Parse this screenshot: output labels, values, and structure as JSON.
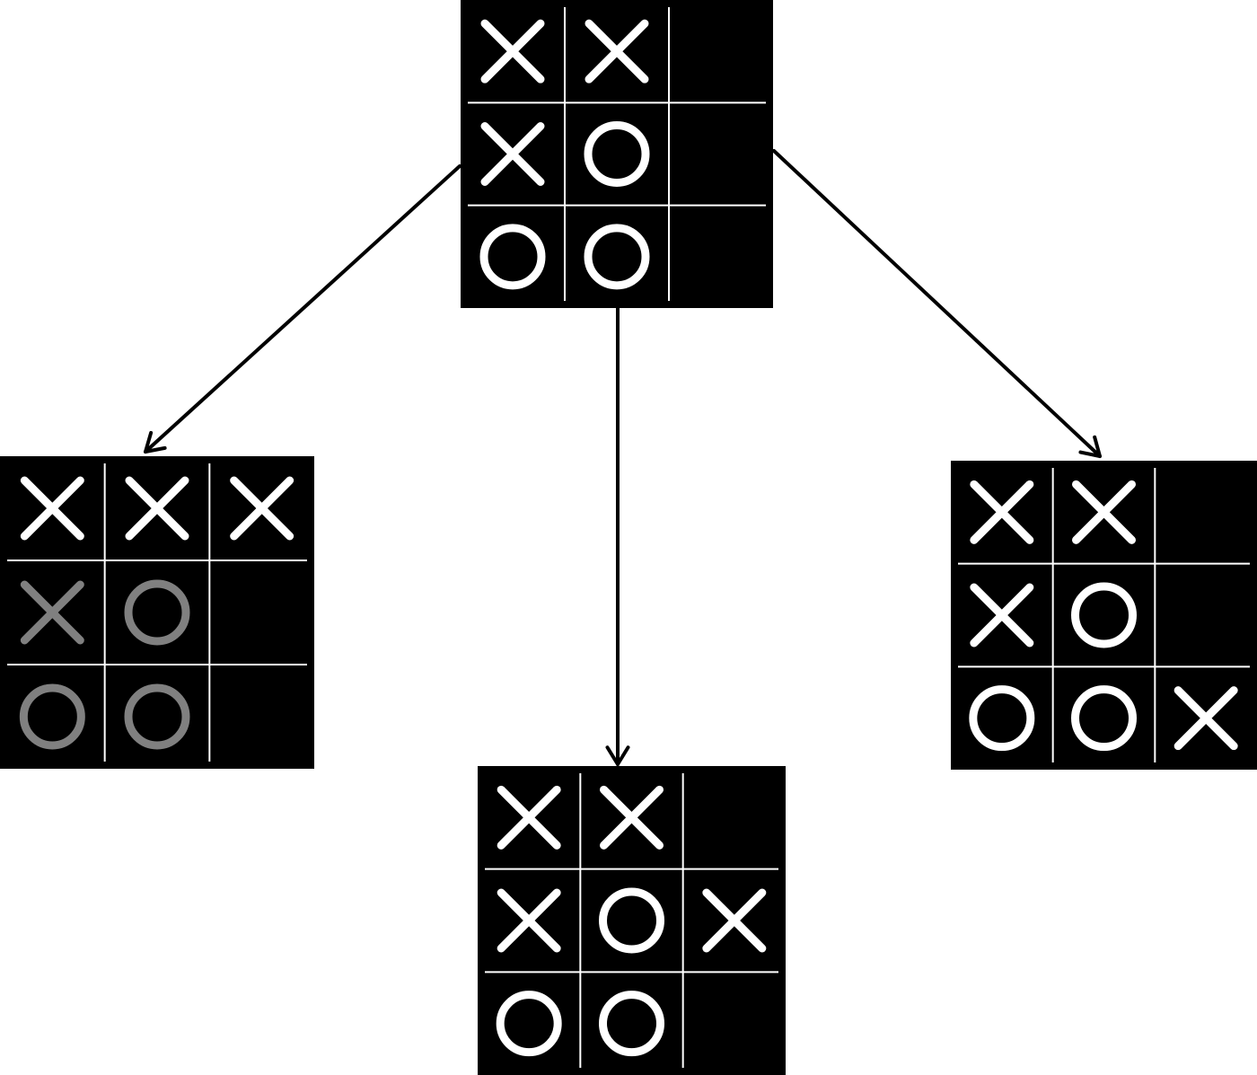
{
  "colors": {
    "background": "#ffffff",
    "board": "#000000",
    "grid_line": "#ffffff",
    "mark_active": "#ffffff",
    "mark_dimmed": "#808080",
    "arrow": "#000000"
  },
  "boards": [
    {
      "id": "root",
      "role": "current-state",
      "cells": [
        [
          "X",
          "X",
          ""
        ],
        [
          "X",
          "O",
          ""
        ],
        [
          "O",
          "O",
          ""
        ]
      ],
      "dimmed": []
    },
    {
      "id": "child-left",
      "role": "move-top-right",
      "cells": [
        [
          "X",
          "X",
          "X"
        ],
        [
          "X",
          "O",
          ""
        ],
        [
          "O",
          "O",
          ""
        ]
      ],
      "dimmed": [
        [
          1,
          0
        ],
        [
          1,
          1
        ],
        [
          2,
          0
        ],
        [
          2,
          1
        ]
      ]
    },
    {
      "id": "child-middle",
      "role": "move-middle-right",
      "cells": [
        [
          "X",
          "X",
          ""
        ],
        [
          "X",
          "O",
          "X"
        ],
        [
          "O",
          "O",
          ""
        ]
      ],
      "dimmed": []
    },
    {
      "id": "child-right",
      "role": "move-bottom-right",
      "cells": [
        [
          "X",
          "X",
          ""
        ],
        [
          "X",
          "O",
          ""
        ],
        [
          "O",
          "O",
          "X"
        ]
      ],
      "dimmed": []
    }
  ],
  "edges": [
    {
      "from": "root",
      "to": "child-left"
    },
    {
      "from": "root",
      "to": "child-middle"
    },
    {
      "from": "root",
      "to": "child-right"
    }
  ]
}
